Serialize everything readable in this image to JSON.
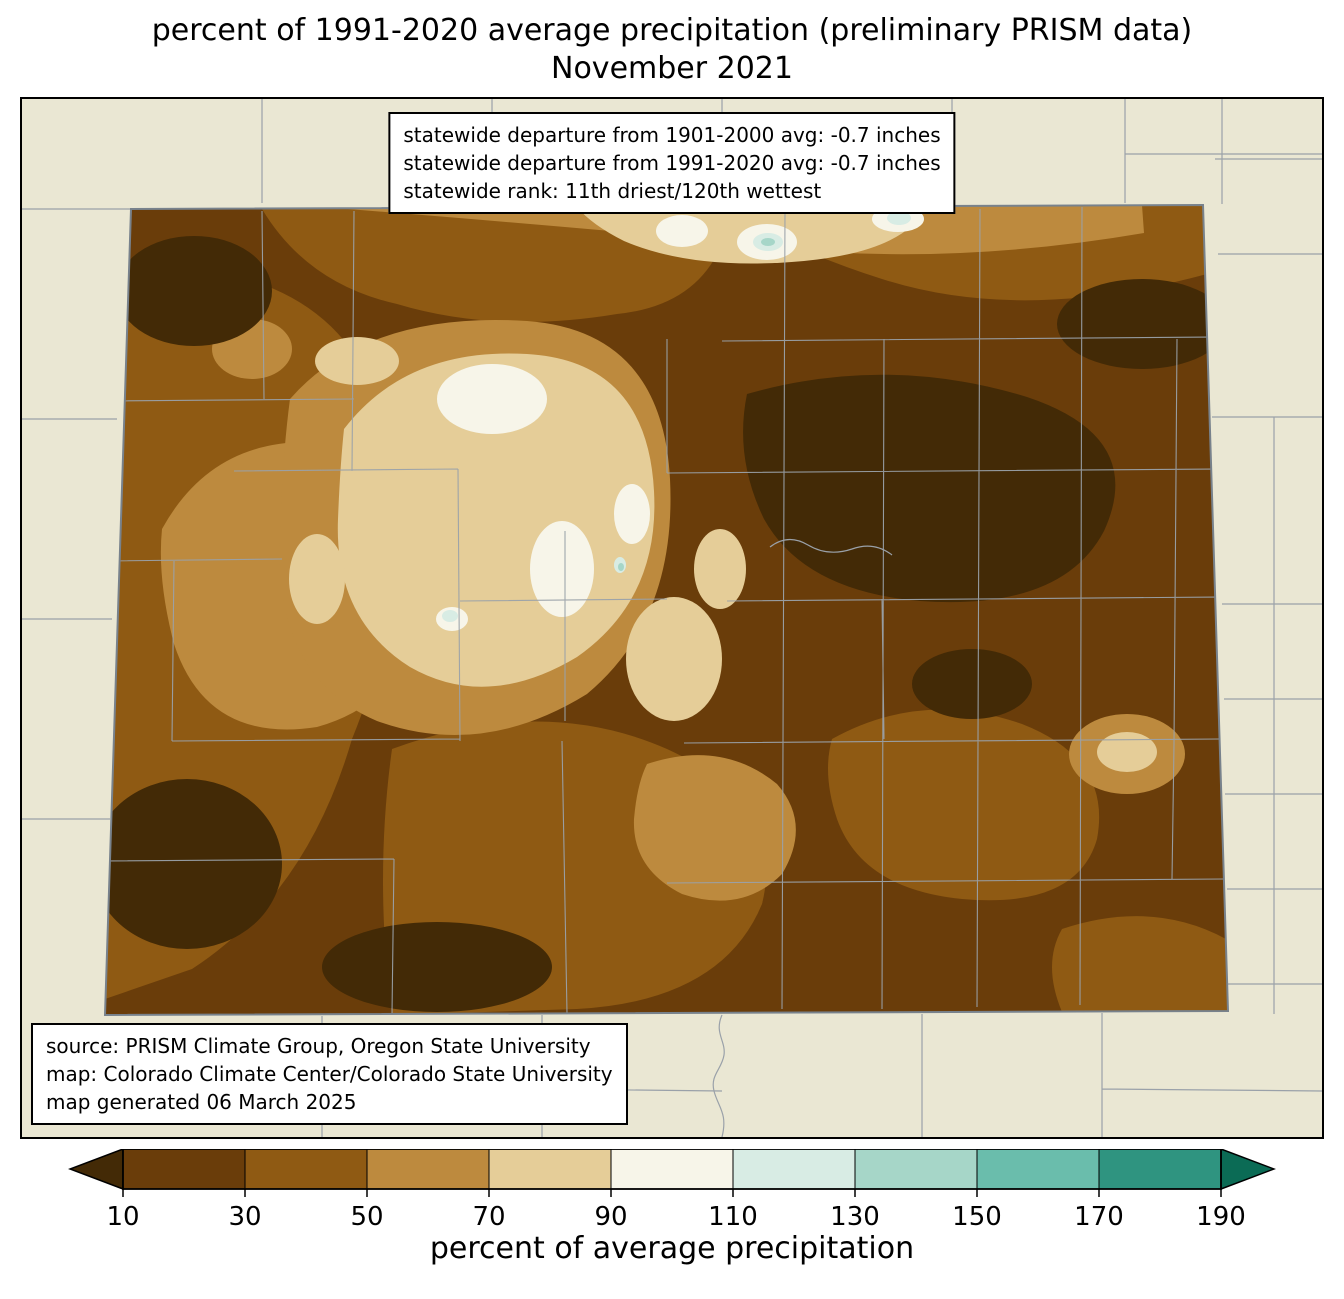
{
  "title": {
    "line1": "percent of 1991-2020 average precipitation (preliminary PRISM data)",
    "line2": "November 2021"
  },
  "stats_box": {
    "line1": "statewide departure from 1901-2000 avg: -0.7 inches",
    "line2": "statewide departure from 1991-2020 avg: -0.7 inches",
    "line3": "statewide rank: 11th driest/120th wettest"
  },
  "source_box": {
    "line1": "source: PRISM Climate Group, Oregon State University",
    "line2": "map: Colorado Climate Center/Colorado State University",
    "line3": "map generated 06 March 2025"
  },
  "colorbar": {
    "label": "percent of average precipitation",
    "ticks": [
      "10",
      "30",
      "50",
      "70",
      "90",
      "110",
      "130",
      "150",
      "170",
      "190"
    ],
    "segment_colors": [
      "#6a3d0a",
      "#8f5a13",
      "#bd8a3e",
      "#e5cd98",
      "#f7f5e9",
      "#d8ece4",
      "#a6d6c8",
      "#6abdac",
      "#2f9480"
    ]
  },
  "palette": {
    "map_background": "#eae7d3",
    "boundary_line": "#9aa1a9",
    "bins": {
      "<10": "#432a06",
      "10-30": "#6a3d0a",
      "30-50": "#8f5a13",
      "50-70": "#bd8a3e",
      "70-90": "#e5cd98",
      "90-110": "#f7f5e9",
      "110-130": "#d8ece4",
      "130-150": "#a6d6c8",
      "150-170": "#6abdac",
      "170-190": "#2f9480",
      ">190": "#0b6b55"
    }
  }
}
